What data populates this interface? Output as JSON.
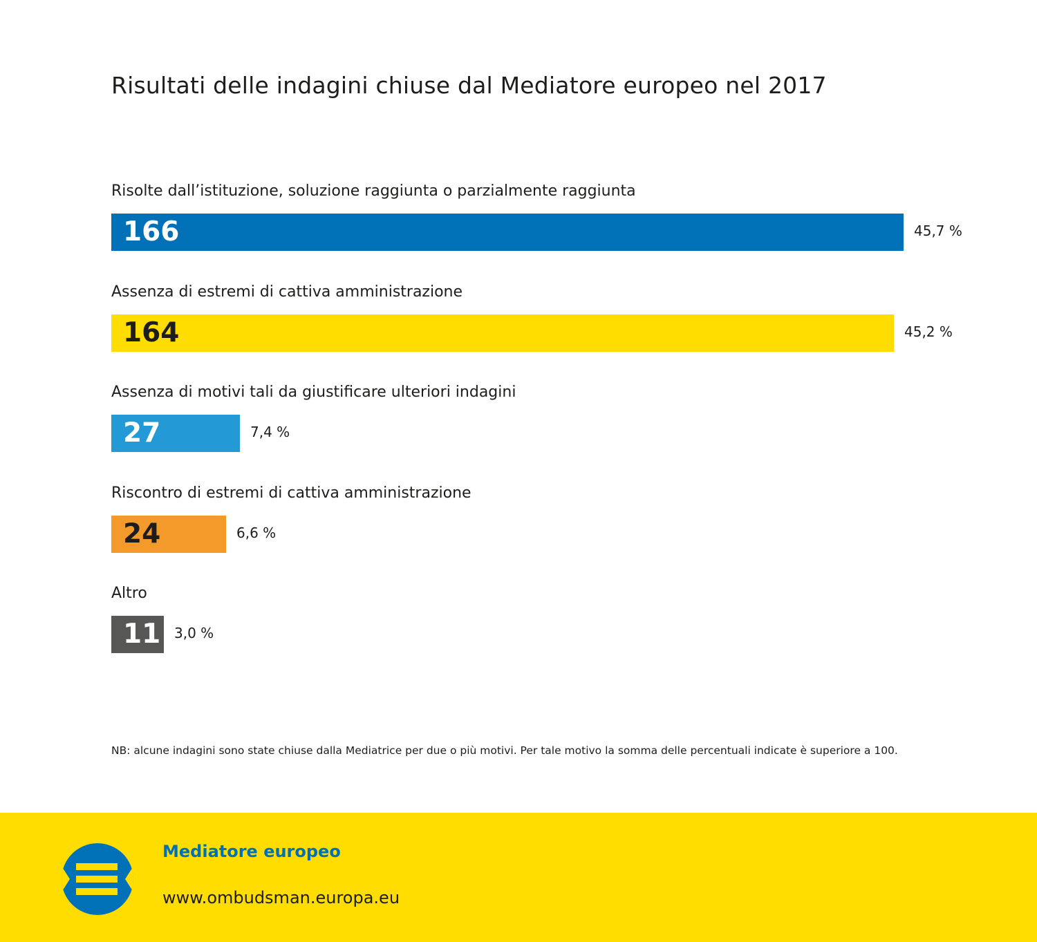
{
  "colors": {
    "blue": "#0070b7",
    "yellow": "#ffdd00",
    "light_blue": "#2399d6",
    "orange": "#f39a2a",
    "grey": "#575756",
    "text_dark": "#1d1d1b",
    "text_white": "#ffffff"
  },
  "chart_data": {
    "type": "bar",
    "orientation": "horizontal",
    "title": "Risultati delle indagini chiuse dal Mediatore europeo nel 2017",
    "categories": [
      "Risolte dall’istituzione, soluzione raggiunta o parzialmente raggiunta",
      "Assenza di estremi di cattiva amministrazione",
      "Assenza di motivi tali da giustificare ulteriori indagini",
      "Riscontro di estremi di cattiva amministrazione",
      "Altro"
    ],
    "values": [
      166,
      164,
      27,
      24,
      11
    ],
    "value_labels": [
      "166",
      "164",
      "27",
      "24",
      "11"
    ],
    "percent_labels": [
      "45,7 %",
      "45,2 %",
      "7,4 %",
      "6,6 %",
      "3,0 %"
    ],
    "bar_colors": [
      "#0070b7",
      "#ffdd00",
      "#2399d6",
      "#f39a2a",
      "#575756"
    ],
    "value_label_colors": [
      "#ffffff",
      "#1d1d1b",
      "#ffffff",
      "#1d1d1b",
      "#ffffff"
    ],
    "xlim": [
      0,
      166
    ],
    "xlabel": "",
    "ylabel": "",
    "grid": false,
    "legend": "none"
  },
  "note": "NB: alcune indagini sono state chiuse dalla Mediatrice per due o più motivi. Per tale motivo la somma delle percentuali indicate è superiore a 100.",
  "footer": {
    "org_name": "Mediatore europeo",
    "url": "www.ombudsman.europa.eu",
    "logo_icon": "european-ombudsman-logo-icon"
  }
}
